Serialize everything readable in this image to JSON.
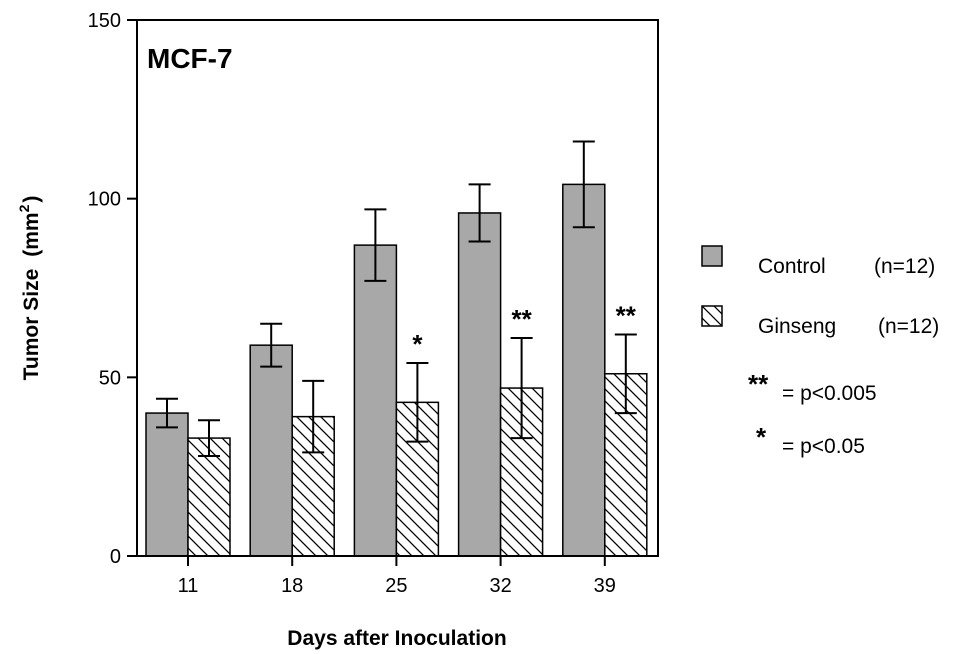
{
  "chart_data": {
    "type": "bar",
    "title": "MCF-7",
    "xlabel": "Days after Inoculation",
    "ylabel_main": "Tumor Size",
    "ylabel_unit_base": "(mm",
    "ylabel_unit_sup": "2",
    "ylabel_unit_close": ")",
    "ylim": [
      0,
      150
    ],
    "yticks": [
      "0",
      "50",
      "100",
      "150"
    ],
    "categories": [
      "11",
      "18",
      "25",
      "32",
      "39"
    ],
    "series": [
      {
        "name": "Control",
        "legend_count": "(n=12)",
        "values": [
          40,
          59,
          87,
          96,
          104
        ],
        "errors": [
          4,
          6,
          10,
          8,
          12
        ],
        "color": "#a8a8a8"
      },
      {
        "name": "Ginseng",
        "legend_count": "(n=12)",
        "values": [
          33,
          39,
          43,
          47,
          51
        ],
        "errors": [
          5,
          10,
          11,
          14,
          11
        ],
        "color": "#ffffff"
      }
    ],
    "significance": [
      "",
      "",
      "*",
      "**",
      "**"
    ],
    "significance_notes": [
      {
        "symbol": "**",
        "text": "= p<0.005"
      },
      {
        "symbol": "*",
        "text": "= p<0.05"
      }
    ],
    "grid": false,
    "legend_position": "right"
  }
}
